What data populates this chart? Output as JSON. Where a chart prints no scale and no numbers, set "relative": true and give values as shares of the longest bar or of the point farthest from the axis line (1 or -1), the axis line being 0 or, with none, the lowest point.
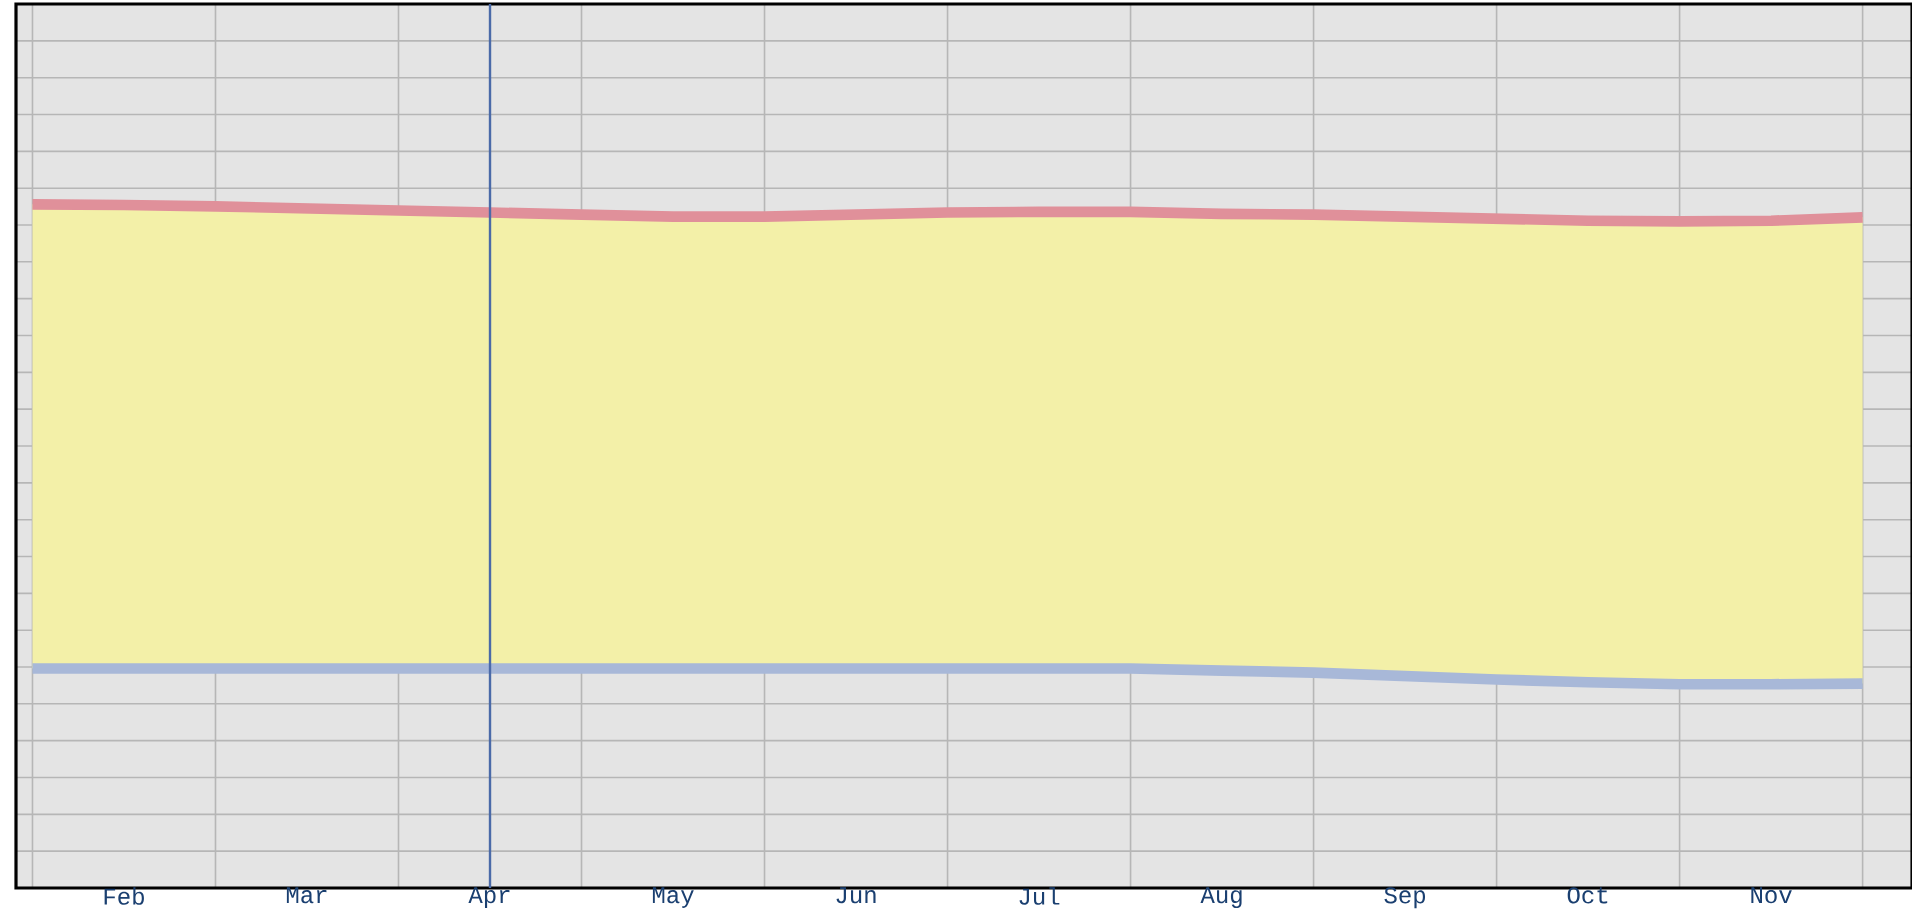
{
  "chart_data": {
    "type": "line",
    "relative": true,
    "grid": true,
    "marker": "none",
    "line_style": "solid",
    "tick_labels": "x",
    "categories": [
      null,
      "Feb",
      null,
      "Mar",
      null,
      "Apr",
      null,
      "May",
      null,
      "Jun",
      null,
      "Jul",
      null,
      "Aug",
      null,
      "Sep",
      null,
      "Oct",
      null,
      "Nov",
      null
    ],
    "series": [
      {
        "color": "#e0909a",
        "values": [
          1.0,
          0.999,
          0.997,
          0.994,
          0.991,
          0.988,
          0.985,
          0.982,
          0.982,
          0.985,
          0.988,
          0.989,
          0.989,
          0.986,
          0.985,
          0.982,
          0.979,
          0.976,
          0.975,
          0.976,
          0.981
        ],
        "lower": [
          0.321,
          0.321,
          0.321,
          0.321,
          0.321,
          0.321,
          0.321,
          0.321,
          0.321,
          0.321,
          0.321,
          0.321,
          0.321,
          0.318,
          0.315,
          0.31,
          0.305,
          0.301,
          0.298,
          0.298,
          0.299
        ],
        "upper": [
          1.0,
          0.999,
          0.997,
          0.994,
          0.991,
          0.988,
          0.985,
          0.982,
          0.982,
          0.985,
          0.988,
          0.989,
          0.989,
          0.986,
          0.985,
          0.982,
          0.979,
          0.976,
          0.975,
          0.976,
          0.981
        ]
      },
      {
        "color": "#a8b8d8",
        "values": [
          0.321,
          0.321,
          0.321,
          0.321,
          0.321,
          0.321,
          0.321,
          0.321,
          0.321,
          0.321,
          0.321,
          0.321,
          0.321,
          0.318,
          0.315,
          0.31,
          0.305,
          0.301,
          0.298,
          0.298,
          0.299
        ]
      }
    ],
    "ref_lines": [
      {
        "axis": "x",
        "value": "Apr",
        "color": "#4a6aa8"
      }
    ]
  }
}
